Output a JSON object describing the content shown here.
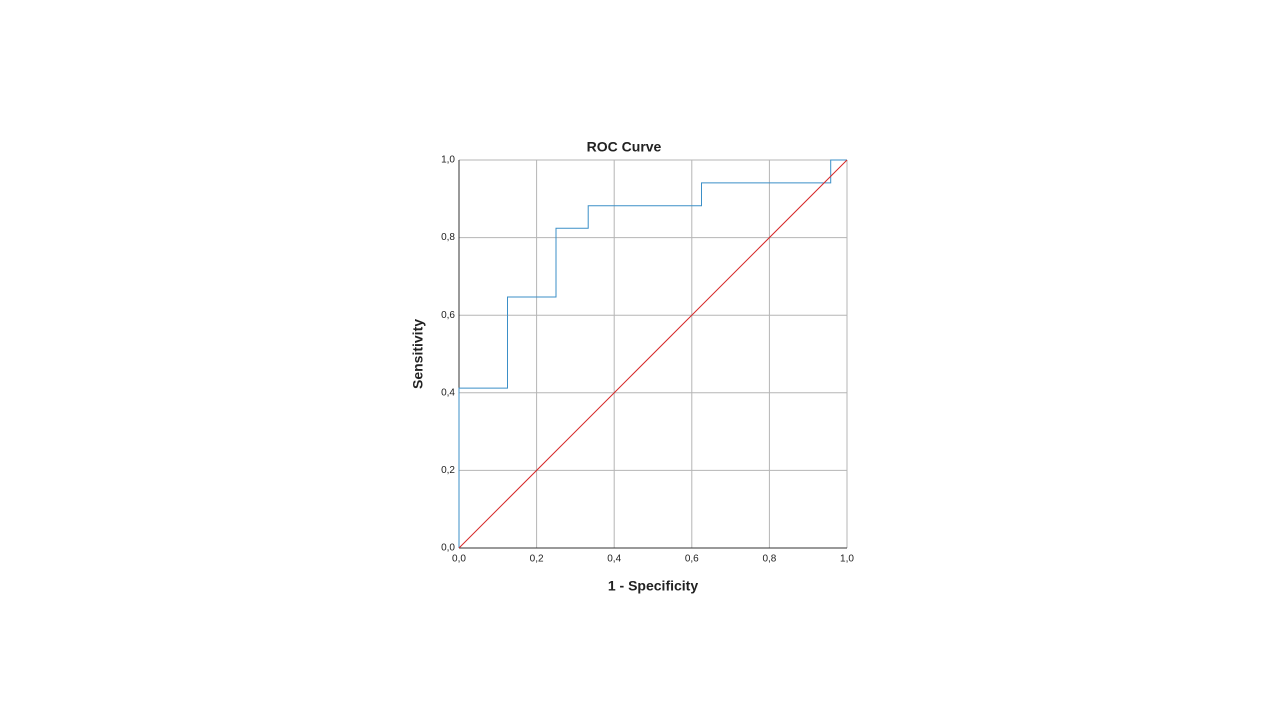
{
  "chart_data": {
    "type": "line",
    "title": "ROC Curve",
    "x_label": "1 - Specificity",
    "y_label": "Sensitivity",
    "series": [
      {
        "color": "#3b8fc7",
        "x": [
          0,
          0,
          0.125,
          0.125,
          0.25,
          0.25,
          0.333,
          0.333,
          0.625,
          0.625,
          0.958,
          0.958,
          1
        ],
        "values": [
          0,
          0.412,
          0.412,
          0.647,
          0.647,
          0.824,
          0.824,
          0.882,
          0.882,
          0.941,
          0.941,
          1,
          1
        ]
      },
      {
        "color": "#d62728",
        "x": [
          0,
          1
        ],
        "values": [
          0,
          1
        ]
      }
    ],
    "xlim": [
      0,
      1
    ],
    "ylim": [
      0,
      1
    ],
    "xticks": [
      {
        "value": 0,
        "label": "0,0"
      },
      {
        "value": 0.2,
        "label": "0,2"
      },
      {
        "value": 0.4,
        "label": "0,4"
      },
      {
        "value": 0.6,
        "label": "0,6"
      },
      {
        "value": 0.8,
        "label": "0,8"
      },
      {
        "value": 1,
        "label": "1,0"
      }
    ],
    "yticks": [
      {
        "value": 0,
        "label": "0,0"
      },
      {
        "value": 0.2,
        "label": "0,2"
      },
      {
        "value": 0.4,
        "label": "0,4"
      },
      {
        "value": 0.6,
        "label": "0,6"
      },
      {
        "value": 0.8,
        "label": "0,8"
      },
      {
        "value": 1,
        "label": "1,0"
      }
    ],
    "grid": true
  }
}
